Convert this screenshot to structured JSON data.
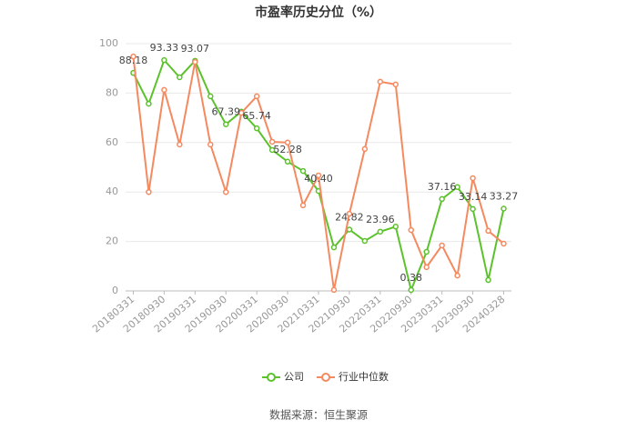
{
  "chart_data": {
    "type": "line",
    "title": "市盈率历史分位（%）",
    "source": "数据来源：恒生聚源",
    "categories": [
      "20180331",
      null,
      "20180930",
      null,
      "20190331",
      null,
      "20190930",
      null,
      "20200331",
      null,
      "20200930",
      null,
      "20210331",
      null,
      "20210930",
      null,
      "20220331",
      null,
      "20220930",
      null,
      "20230331",
      null,
      "20230930",
      null,
      "20240328"
    ],
    "series": [
      {
        "name": "公司",
        "color": "#5cc22c",
        "values": [
          88.18,
          75.7,
          93.33,
          86.4,
          93.07,
          78.7,
          67.39,
          72.5,
          65.74,
          57,
          52.28,
          48.5,
          40.4,
          17.6,
          24.82,
          20.2,
          23.96,
          26,
          0.38,
          15.8,
          37.16,
          42,
          33.14,
          4.4,
          33.27
        ],
        "value_labels": [
          "88.18",
          null,
          "93.33",
          null,
          "93.07",
          null,
          "67.39",
          null,
          "65.74",
          null,
          "52.28",
          null,
          "40.40",
          null,
          "24.82",
          null,
          "23.96",
          null,
          "0.38",
          null,
          "37.16",
          null,
          "33.14",
          null,
          "33.27"
        ]
      },
      {
        "name": "行业中位数",
        "color": "#f5895f",
        "values": [
          94.8,
          40,
          81.3,
          59.2,
          92.6,
          59.2,
          40,
          72,
          78.7,
          60.3,
          60,
          34.6,
          46.7,
          0.4,
          31.2,
          57.4,
          84.6,
          83.5,
          24.6,
          9.6,
          18.4,
          6.2,
          45.6,
          24.3,
          19.1
        ]
      }
    ],
    "ylim": [
      0,
      100
    ],
    "yticks": [
      0,
      20,
      40,
      60,
      80,
      100
    ],
    "grid": true
  }
}
